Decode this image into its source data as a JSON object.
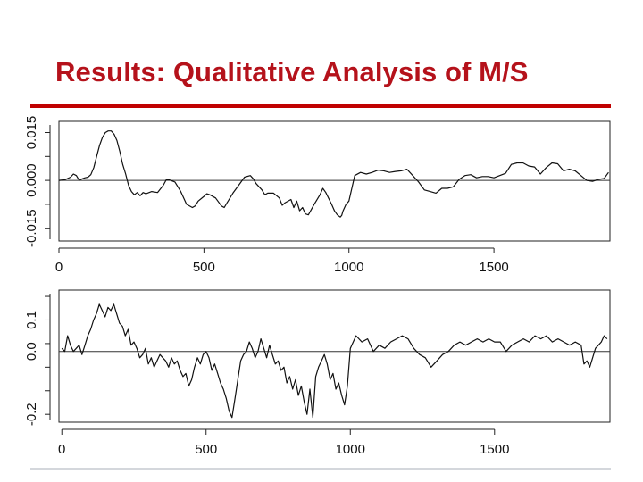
{
  "slide": {
    "title": "Results: Qualitative Analysis of M/S",
    "colors": {
      "title": "#b5121b",
      "rule": "#c00000",
      "line": "#111111"
    }
  },
  "chart_data": [
    {
      "type": "line",
      "xlim": [
        0,
        1900
      ],
      "ylim": [
        -0.019,
        0.0185
      ],
      "x_ticks": [
        0,
        500,
        1000,
        1500
      ],
      "x_tick_labels": [
        "0",
        "500",
        "1000",
        "1500"
      ],
      "y_ticks": [
        -0.015,
        0.0,
        0.015
      ],
      "y_tick_labels": [
        "-0.015",
        "0.000",
        "0.015"
      ],
      "hline": 0,
      "grid": false,
      "series": [
        {
          "x": [
            0,
            20,
            40,
            50,
            60,
            70,
            80,
            90,
            100,
            110,
            120,
            130,
            140,
            150,
            160,
            170,
            180,
            190,
            200,
            210,
            220,
            230,
            240,
            250,
            260,
            270,
            280,
            290,
            300,
            320,
            340,
            360,
            370,
            380,
            400,
            420,
            440,
            460,
            470,
            480,
            500,
            510,
            520,
            540,
            560,
            570,
            580,
            600,
            620,
            640,
            660,
            670,
            680,
            700,
            710,
            720,
            740,
            760,
            770,
            780,
            800,
            810,
            820,
            830,
            840,
            850,
            860,
            880,
            900,
            910,
            920,
            940,
            950,
            960,
            970,
            975,
            980,
            990,
            1000,
            1020,
            1040,
            1060,
            1080,
            1100,
            1120,
            1140,
            1160,
            1180,
            1200,
            1220,
            1240,
            1260,
            1280,
            1300,
            1320,
            1340,
            1360,
            1380,
            1400,
            1420,
            1440,
            1460,
            1480,
            1500,
            1520,
            1540,
            1560,
            1580,
            1600,
            1620,
            1640,
            1660,
            1680,
            1700,
            1720,
            1740,
            1760,
            1780,
            1800,
            1820,
            1840,
            1860,
            1880,
            1895
          ],
          "y": [
            0.0,
            0.0002,
            0.001,
            0.002,
            0.0015,
            0.0,
            0.0005,
            0.0008,
            0.001,
            0.0018,
            0.004,
            0.0075,
            0.011,
            0.0135,
            0.015,
            0.0155,
            0.0155,
            0.0145,
            0.0125,
            0.009,
            0.005,
            0.002,
            -0.0015,
            -0.0035,
            -0.0045,
            -0.0038,
            -0.0048,
            -0.0038,
            -0.0042,
            -0.0035,
            -0.0038,
            -0.0015,
            0.0002,
            0.0002,
            -0.0005,
            -0.0035,
            -0.0075,
            -0.0085,
            -0.008,
            -0.0065,
            -0.005,
            -0.0042,
            -0.0045,
            -0.0055,
            -0.008,
            -0.0085,
            -0.007,
            -0.004,
            -0.0015,
            0.001,
            0.0015,
            0.0005,
            -0.001,
            -0.003,
            -0.0045,
            -0.004,
            -0.004,
            -0.0055,
            -0.0078,
            -0.007,
            -0.006,
            -0.0085,
            -0.0065,
            -0.0095,
            -0.0085,
            -0.0105,
            -0.0108,
            -0.0075,
            -0.0045,
            -0.0025,
            -0.0038,
            -0.0075,
            -0.0095,
            -0.0108,
            -0.0115,
            -0.011,
            -0.0095,
            -0.0075,
            -0.0065,
            0.0015,
            0.0025,
            0.002,
            0.0025,
            0.0032,
            0.003,
            0.0025,
            0.0028,
            0.003,
            0.0035,
            0.0015,
            -0.0005,
            -0.003,
            -0.0035,
            -0.004,
            -0.0025,
            -0.0025,
            -0.002,
            0.0003,
            0.0015,
            0.0018,
            0.0008,
            0.0012,
            0.0012,
            0.0008,
            0.0015,
            0.0022,
            0.005,
            0.0055,
            0.0055,
            0.0045,
            0.0042,
            0.002,
            0.004,
            0.0055,
            0.0052,
            0.003,
            0.0035,
            0.003,
            0.0015,
            0.0,
            -0.0003,
            0.0003,
            0.0006,
            0.0025
          ]
        }
      ]
    },
    {
      "type": "line",
      "xlim": [
        -10,
        1900
      ],
      "ylim": [
        -0.225,
        0.195
      ],
      "x_ticks": [
        0,
        500,
        1000,
        1500
      ],
      "x_tick_labels": [
        "0",
        "500",
        "1000",
        "1500"
      ],
      "y_ticks": [
        -0.2,
        0.0,
        0.1
      ],
      "y_tick_labels": [
        "-0.2",
        "0.0",
        "0.1"
      ],
      "hline": 0,
      "grid": false,
      "series": [
        {
          "x": [
            0,
            10,
            20,
            30,
            40,
            50,
            60,
            70,
            80,
            90,
            100,
            110,
            120,
            130,
            140,
            150,
            160,
            170,
            180,
            190,
            200,
            210,
            220,
            230,
            240,
            250,
            260,
            270,
            280,
            290,
            300,
            310,
            320,
            330,
            340,
            350,
            360,
            370,
            380,
            390,
            400,
            410,
            420,
            430,
            440,
            450,
            460,
            470,
            480,
            490,
            500,
            510,
            520,
            530,
            540,
            550,
            560,
            570,
            580,
            590,
            600,
            610,
            620,
            630,
            640,
            650,
            660,
            670,
            680,
            690,
            700,
            710,
            720,
            730,
            740,
            750,
            760,
            770,
            780,
            790,
            800,
            810,
            820,
            830,
            840,
            850,
            860,
            870,
            880,
            890,
            900,
            910,
            920,
            930,
            940,
            950,
            960,
            970,
            980,
            990,
            1000,
            1020,
            1040,
            1060,
            1080,
            1100,
            1120,
            1140,
            1160,
            1180,
            1200,
            1220,
            1240,
            1260,
            1280,
            1300,
            1320,
            1340,
            1360,
            1380,
            1400,
            1420,
            1440,
            1460,
            1480,
            1500,
            1520,
            1540,
            1560,
            1580,
            1600,
            1620,
            1640,
            1660,
            1680,
            1700,
            1720,
            1740,
            1760,
            1780,
            1800,
            1810,
            1820,
            1830,
            1840,
            1850,
            1860,
            1870,
            1880,
            1890
          ],
          "y": [
            0.01,
            0.0,
            0.05,
            0.02,
            0.0,
            0.01,
            0.02,
            -0.01,
            0.02,
            0.05,
            0.07,
            0.1,
            0.12,
            0.15,
            0.13,
            0.11,
            0.14,
            0.13,
            0.15,
            0.12,
            0.09,
            0.08,
            0.05,
            0.07,
            0.02,
            0.03,
            0.01,
            -0.02,
            -0.01,
            0.01,
            -0.04,
            -0.02,
            -0.05,
            -0.03,
            -0.01,
            -0.02,
            -0.03,
            -0.05,
            -0.02,
            -0.04,
            -0.03,
            -0.06,
            -0.08,
            -0.07,
            -0.11,
            -0.09,
            -0.05,
            -0.02,
            -0.04,
            -0.01,
            0.0,
            -0.02,
            -0.06,
            -0.04,
            -0.07,
            -0.1,
            -0.12,
            -0.15,
            -0.19,
            -0.21,
            -0.15,
            -0.09,
            -0.03,
            -0.01,
            0.0,
            0.03,
            0.01,
            -0.02,
            0.0,
            0.04,
            0.01,
            -0.02,
            0.02,
            -0.01,
            -0.04,
            -0.03,
            -0.06,
            -0.05,
            -0.1,
            -0.08,
            -0.12,
            -0.09,
            -0.14,
            -0.11,
            -0.16,
            -0.2,
            -0.12,
            -0.21,
            -0.08,
            -0.05,
            -0.03,
            -0.01,
            -0.04,
            -0.09,
            -0.07,
            -0.12,
            -0.1,
            -0.14,
            -0.17,
            -0.11,
            0.01,
            0.05,
            0.03,
            0.04,
            0.0,
            0.02,
            0.01,
            0.03,
            0.04,
            0.05,
            0.04,
            0.01,
            -0.01,
            -0.02,
            -0.05,
            -0.03,
            -0.01,
            0.0,
            0.02,
            0.03,
            0.02,
            0.03,
            0.04,
            0.03,
            0.04,
            0.03,
            0.03,
            0.0,
            0.02,
            0.03,
            0.04,
            0.03,
            0.05,
            0.04,
            0.05,
            0.03,
            0.04,
            0.03,
            0.02,
            0.03,
            0.02,
            -0.04,
            -0.03,
            -0.05,
            -0.02,
            0.01,
            0.02,
            0.03,
            0.05,
            0.04
          ]
        }
      ]
    }
  ]
}
